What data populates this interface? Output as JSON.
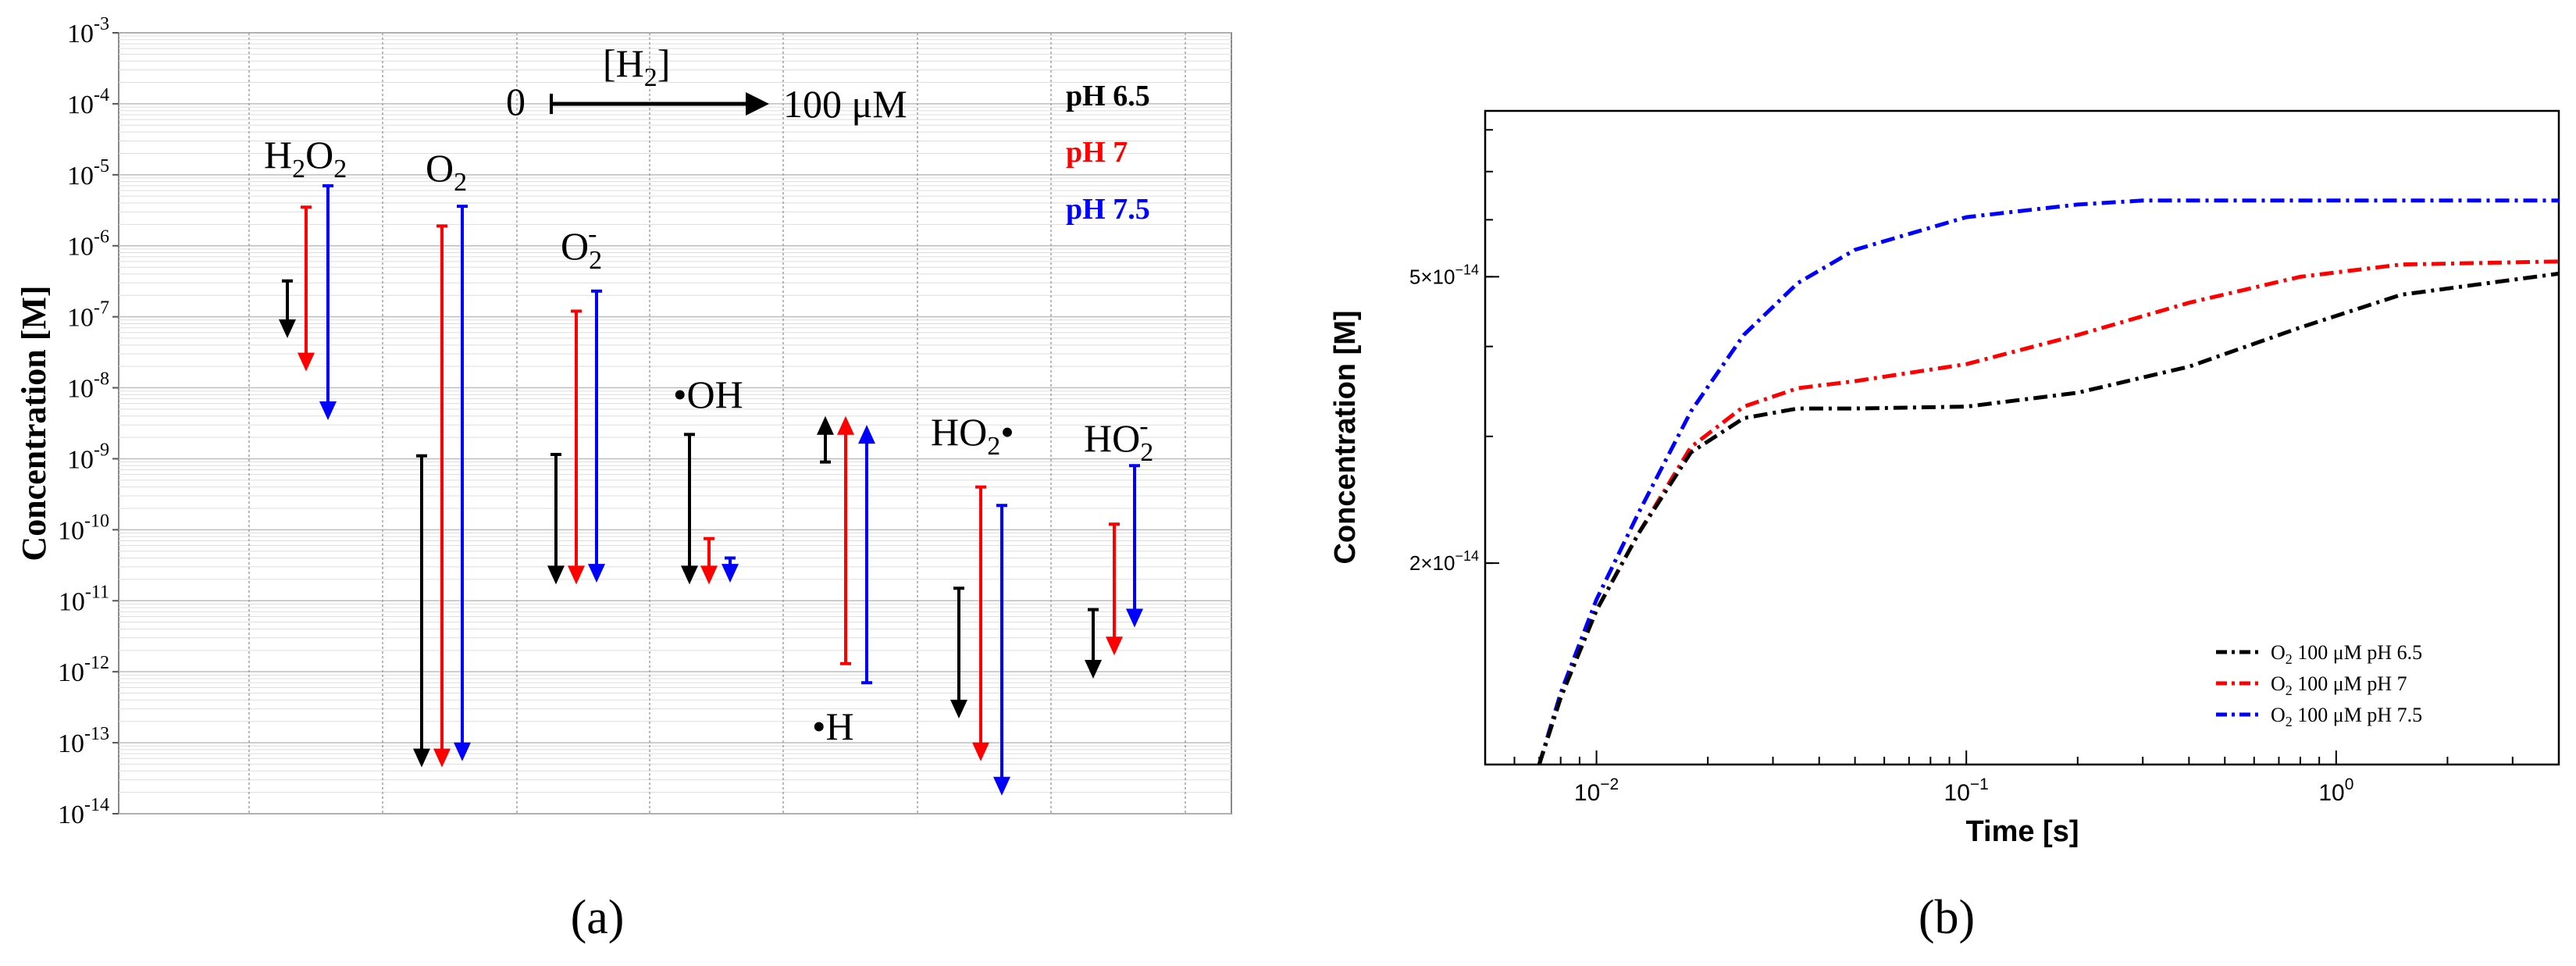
{
  "panels": {
    "a": {
      "label": "(a)"
    },
    "b": {
      "label": "(b)"
    }
  },
  "colors": {
    "ph65": "#000000",
    "ph7": "#ff0000",
    "ph75": "#0000ff"
  },
  "chart_data": [
    {
      "type": "range-arrows",
      "ylabel": "Concentration [M]",
      "yscale": "log",
      "ylim": [
        1e-14,
        0.001
      ],
      "ytick_exponents": [
        -14,
        -13,
        -12,
        -11,
        -10,
        -9,
        -8,
        -7,
        -6,
        -5,
        -4,
        -3
      ],
      "ytick_base": "10",
      "legend": [
        {
          "label": "pH 6.5",
          "color": "#000000"
        },
        {
          "label": "pH 7",
          "color": "#ff0000"
        },
        {
          "label": "pH 7.5",
          "color": "#0000ff"
        }
      ],
      "annotation": {
        "from": "0",
        "to": "100 μM",
        "variable_text": "[H2]",
        "var_main": "[H",
        "var_sub": "2",
        "var_close": "]"
      },
      "species": [
        {
          "name": "H2O2",
          "label_parts": {
            "a": "H",
            "b": "2",
            "c": "O",
            "d": "2"
          },
          "ranges": [
            {
              "ph": "pH 6.5",
              "start": 3.2e-07,
              "end": 5e-08
            },
            {
              "ph": "pH 7",
              "start": 3.5e-06,
              "end": 1.7e-08
            },
            {
              "ph": "pH 7.5",
              "start": 7e-06,
              "end": 3.5e-09
            }
          ]
        },
        {
          "name": "O2",
          "label_parts": {
            "a": "O",
            "b": "2"
          },
          "ranges": [
            {
              "ph": "pH 6.5",
              "start": 1.1e-09,
              "end": 4.5e-14
            },
            {
              "ph": "pH 7",
              "start": 1.9e-06,
              "end": 4.5e-14
            },
            {
              "ph": "pH 7.5",
              "start": 3.6e-06,
              "end": 5.5e-14
            }
          ]
        },
        {
          "name": "O2-",
          "label_parts": {
            "a": "O",
            "b": "2",
            "c": "-"
          },
          "ranges": [
            {
              "ph": "pH 6.5",
              "start": 1.15e-09,
              "end": 1.7e-11
            },
            {
              "ph": "pH 7",
              "start": 1.2e-07,
              "end": 1.7e-11
            },
            {
              "ph": "pH 7.5",
              "start": 2.3e-07,
              "end": 1.8e-11
            }
          ]
        },
        {
          "name": "•OH",
          "label_parts": {
            "a": "•OH"
          },
          "ranges": [
            {
              "ph": "pH 6.5",
              "start": 2.2e-09,
              "end": 1.7e-11
            },
            {
              "ph": "pH 7",
              "start": 7.5e-11,
              "end": 1.7e-11
            },
            {
              "ph": "pH 7.5",
              "start": 4e-11,
              "end": 1.8e-11
            }
          ]
        },
        {
          "name": "•H",
          "label_parts": {
            "a": "•H"
          },
          "ranges": [
            {
              "ph": "pH 6.5",
              "start": 9e-10,
              "end": 4e-09
            },
            {
              "ph": "pH 7",
              "start": 1.3e-12,
              "end": 4e-09
            },
            {
              "ph": "pH 7.5",
              "start": 7e-13,
              "end": 3e-09
            }
          ]
        },
        {
          "name": "HO2•",
          "label_parts": {
            "a": "HO",
            "b": "2",
            "c": "•"
          },
          "ranges": [
            {
              "ph": "pH 6.5",
              "start": 1.5e-11,
              "end": 2.2e-13
            },
            {
              "ph": "pH 7",
              "start": 4e-10,
              "end": 5.5e-14
            },
            {
              "ph": "pH 7.5",
              "start": 2.2e-10,
              "end": 1.8e-14
            }
          ]
        },
        {
          "name": "HO2-",
          "label_parts": {
            "a": "HO",
            "b": "2",
            "c": "-"
          },
          "ranges": [
            {
              "ph": "pH 6.5",
              "start": 7.5e-12,
              "end": 8e-13
            },
            {
              "ph": "pH 7",
              "start": 1.2e-10,
              "end": 1.7e-12
            },
            {
              "ph": "pH 7.5",
              "start": 8e-10,
              "end": 4.2e-12
            }
          ]
        }
      ]
    },
    {
      "type": "line",
      "xlabel": "Time [s]",
      "ylabel": "Concentration [M]",
      "xscale": "log",
      "yscale": "log",
      "xlim": [
        0.005,
        4
      ],
      "ylim": [
        1.05e-14,
        8.5e-14
      ],
      "xticks": [
        {
          "value": 0.01,
          "base": "10",
          "exp": "−2"
        },
        {
          "value": 0.1,
          "base": "10",
          "exp": "−1"
        },
        {
          "value": 1,
          "base": "10",
          "exp": "0"
        }
      ],
      "yticks": [
        {
          "value": 2e-14,
          "mant": "2×10",
          "exp": "−14"
        },
        {
          "value": 5e-14,
          "mant": "5×10",
          "exp": "−14"
        }
      ],
      "series": [
        {
          "name": "O2 100 μM pH 6.5",
          "label_parts": {
            "a": "O",
            "b": "2",
            "c": " 100 μM pH 6.5"
          },
          "color": "#000000",
          "x": [
            0.007,
            0.008,
            0.01,
            0.013,
            0.018,
            0.025,
            0.035,
            0.05,
            0.1,
            0.2,
            0.4,
            0.8,
            1.5,
            4
          ],
          "y": [
            1.05e-14,
            1.3e-14,
            1.72e-14,
            2.2e-14,
            2.85e-14,
            3.18e-14,
            3.28e-14,
            3.28e-14,
            3.3e-14,
            3.45e-14,
            3.75e-14,
            4.25e-14,
            4.72e-14,
            5.05e-14
          ]
        },
        {
          "name": "O2 100 μM pH 7",
          "label_parts": {
            "a": "O",
            "b": "2",
            "c": " 100 μM pH 7"
          },
          "color": "#ff0000",
          "x": [
            0.007,
            0.008,
            0.01,
            0.013,
            0.018,
            0.025,
            0.035,
            0.05,
            0.1,
            0.2,
            0.4,
            0.8,
            1.5,
            4
          ],
          "y": [
            1.05e-14,
            1.3e-14,
            1.72e-14,
            2.2e-14,
            2.9e-14,
            3.3e-14,
            3.5e-14,
            3.58e-14,
            3.78e-14,
            4.15e-14,
            4.6e-14,
            5e-14,
            5.2e-14,
            5.25e-14
          ]
        },
        {
          "name": "O2 100 μM pH 7.5",
          "label_parts": {
            "a": "O",
            "b": "2",
            "c": " 100 μM pH 7.5"
          },
          "color": "#0000ff",
          "x": [
            0.007,
            0.008,
            0.01,
            0.013,
            0.018,
            0.025,
            0.035,
            0.05,
            0.1,
            0.2,
            0.3,
            0.5,
            1,
            4
          ],
          "y": [
            1.05e-14,
            1.32e-14,
            1.78e-14,
            2.35e-14,
            3.25e-14,
            4.15e-14,
            4.9e-14,
            5.45e-14,
            6.05e-14,
            6.3e-14,
            6.38e-14,
            6.38e-14,
            6.38e-14,
            6.38e-14
          ]
        }
      ]
    }
  ]
}
